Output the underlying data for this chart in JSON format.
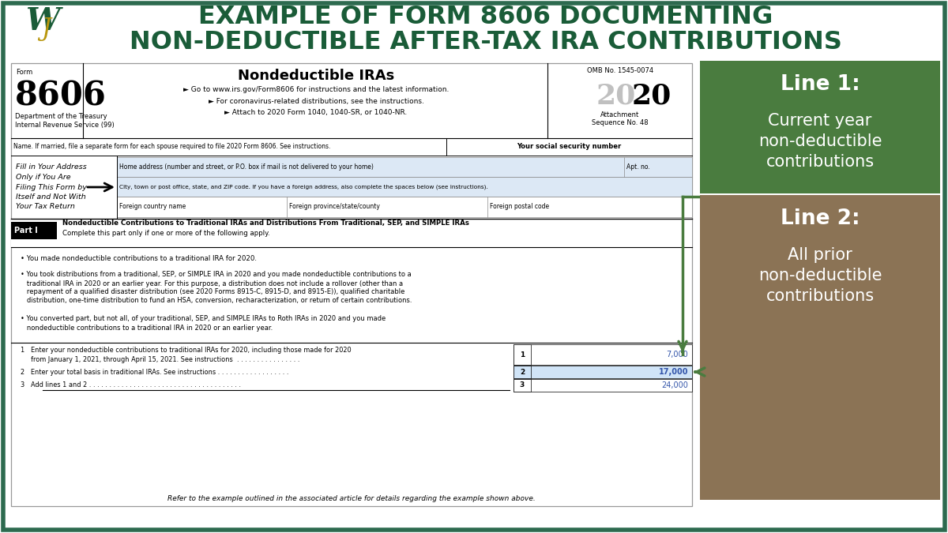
{
  "title_line1": "EXAMPLE OF FORM 8606 DOCUMENTING",
  "title_line2": "NON-DEDUCTIBLE AFTER-TAX IRA CONTRIBUTIONS",
  "title_color": "#1a5c38",
  "title_fontsize": 23,
  "bg_color": "#ffffff",
  "border_color": "#2d6a4f",
  "border_lw": 4,
  "form_title": "Nondeductible IRAs",
  "sub1": "► Go to www.irs.gov/Form8606 for instructions and the latest information.",
  "sub2": "► For coronavirus-related distributions, see the instructions.",
  "sub3": "► Attach to 2020 Form 1040, 1040-SR, or 1040-NR.",
  "omb": "OMB No. 1545-0074",
  "dept": "Department of the Treasury",
  "irs": "Internal Revenue Service (99)",
  "name_row": "Name. If married, file a separate form for each spouse required to file 2020 Form 8606. See instructions.",
  "ssn_label": "Your social security number",
  "addr_note": "Fill in Your Address\nOnly if You Are\nFiling This Form by\nItself and Not With\nYour Tax Return",
  "home_addr": "Home address (number and street, or P.O. box if mail is not delivered to your home)",
  "apt": "Apt. no.",
  "city": "City, town or post office, state, and ZIP code. If you have a foreign address, also complete the spaces below (see instructions).",
  "foreign_country": "Foreign country name",
  "foreign_province": "Foreign province/state/county",
  "foreign_postal": "Foreign postal code",
  "part1_label": "Part I",
  "part1_title": "Nondeductible Contributions to Traditional IRAs and Distributions From Traditional, SEP, and SIMPLE IRAs",
  "part1_sub": "Complete this part only if one or more of the following apply.",
  "b1": "You made nondeductible contributions to a traditional IRA for 2020.",
  "b2_lines": [
    "• You took distributions from a traditional, SEP, or SIMPLE IRA in 2020 and you made nondeductible contributions to a",
    "   traditional IRA in 2020 or an earlier year. For this purpose, a distribution does not include a rollover (other than a",
    "   repayment of a qualified disaster distribution (see 2020 Forms 8915-C, 8915-D, and 8915-E)), qualified charitable",
    "   distribution, one-time distribution to fund an HSA, conversion, recharacterization, or return of certain contributions."
  ],
  "b3_lines": [
    "• You converted part, but not all, of your traditional, SEP, and SIMPLE IRAs to Roth IRAs in 2020 and you made",
    "   nondeductible contributions to a traditional IRA in 2020 or an earlier year."
  ],
  "l1a": "1   Enter your nondeductible contributions to traditional IRAs for 2020, including those made for 2020",
  "l1b": "     from January 1, 2021, through April 15, 2021. See instructions  . . . . . . . . . . . . . . . .",
  "l2": "2   Enter your total basis in traditional IRAs. See instructions . . . . . . . . . . . . . . . . . .",
  "l3": "3   Add lines 1 and 2 . . . . . . . . . . . . . . . . . . . . . . . . . . . . . . . . . . . . . .",
  "v1": "7,000",
  "v2": "17,000",
  "v3": "24,000",
  "footnote": "Refer to the example outlined in the associated article for details regarding the example shown above.",
  "box1_bg": "#4a7c3f",
  "box2_bg": "#8b7355",
  "box1_head": "Line 1:",
  "box1_body": "Current year\nnon-deductible\ncontributions",
  "box2_head": "Line 2:",
  "box2_body": "All prior\nnon-deductible\ncontributions",
  "arrow_col": "#4a7c3f",
  "val_col": "#3355aa",
  "highlight_col": "#d0e4f7"
}
